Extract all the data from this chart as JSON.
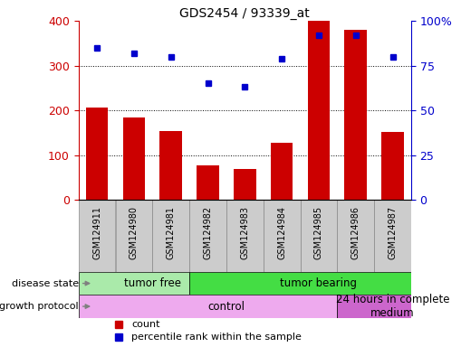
{
  "title": "GDS2454 / 93339_at",
  "samples": [
    "GSM124911",
    "GSM124980",
    "GSM124981",
    "GSM124982",
    "GSM124983",
    "GSM124984",
    "GSM124985",
    "GSM124986",
    "GSM124987"
  ],
  "counts": [
    207,
    185,
    155,
    78,
    70,
    127,
    400,
    380,
    152
  ],
  "percentile_ranks": [
    85,
    82,
    80,
    65,
    63,
    79,
    92,
    92,
    80
  ],
  "bar_color": "#cc0000",
  "dot_color": "#0000cc",
  "ylim_left": [
    0,
    400
  ],
  "ylim_right": [
    0,
    100
  ],
  "yticks_left": [
    0,
    100,
    200,
    300,
    400
  ],
  "yticks_right": [
    0,
    25,
    50,
    75,
    100
  ],
  "disease_state_groups": [
    {
      "label": "tumor free",
      "start": 0,
      "end": 3,
      "color": "#aaeaaa"
    },
    {
      "label": "tumor bearing",
      "start": 3,
      "end": 9,
      "color": "#44dd44"
    }
  ],
  "growth_protocol_groups": [
    {
      "label": "control",
      "start": 0,
      "end": 7,
      "color": "#eeaaee"
    },
    {
      "label": "24 hours in complete\nmedium",
      "start": 7,
      "end": 9,
      "color": "#cc66cc"
    }
  ],
  "left_label_disease": "disease state",
  "left_label_growth": "growth protocol",
  "legend_count_label": "count",
  "legend_pct_label": "percentile rank within the sample",
  "tick_label_color_left": "#cc0000",
  "tick_label_color_right": "#0000cc",
  "grid_color": "#000000",
  "bar_width": 0.6,
  "xtick_bg_color": "#cccccc",
  "xtick_box_color": "#888888"
}
